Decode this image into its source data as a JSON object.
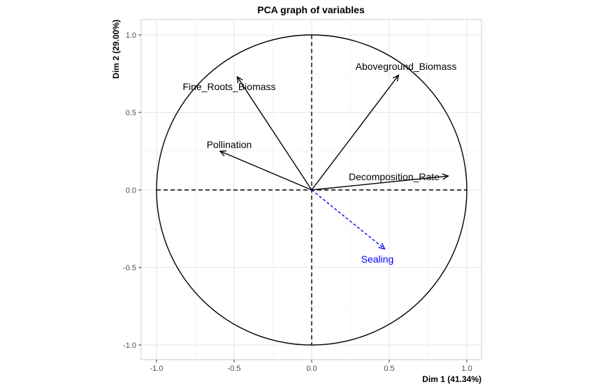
{
  "chart_data": {
    "type": "scatter",
    "title": "PCA graph of variables",
    "xlabel": "Dim 1 (41.34%)",
    "ylabel": "Dim 2 (29.00%)",
    "xlim": [
      -1.1,
      1.1
    ],
    "ylim": [
      -1.1,
      1.1
    ],
    "x_ticks": [
      "-1.0",
      "-0.5",
      "0.0",
      "0.5",
      "1.0"
    ],
    "y_ticks": [
      "-1.0",
      "-0.5",
      "0.0",
      "0.5",
      "1.0"
    ],
    "grid": true,
    "correlation_circle": true,
    "variables": [
      {
        "name": "Aboveground_Biomass",
        "x": 0.56,
        "y": 0.74,
        "color": "#000000",
        "supplementary": false
      },
      {
        "name": "Fine_Roots_Biomass",
        "x": -0.48,
        "y": 0.73,
        "color": "#000000",
        "supplementary": false
      },
      {
        "name": "Pollination",
        "x": -0.59,
        "y": 0.25,
        "color": "#000000",
        "supplementary": false
      },
      {
        "name": "Decomposition_Rate",
        "x": 0.88,
        "y": 0.09,
        "color": "#000000",
        "supplementary": false
      },
      {
        "name": "Sealing",
        "x": 0.47,
        "y": -0.38,
        "color": "#0000ff",
        "supplementary": true
      }
    ]
  }
}
